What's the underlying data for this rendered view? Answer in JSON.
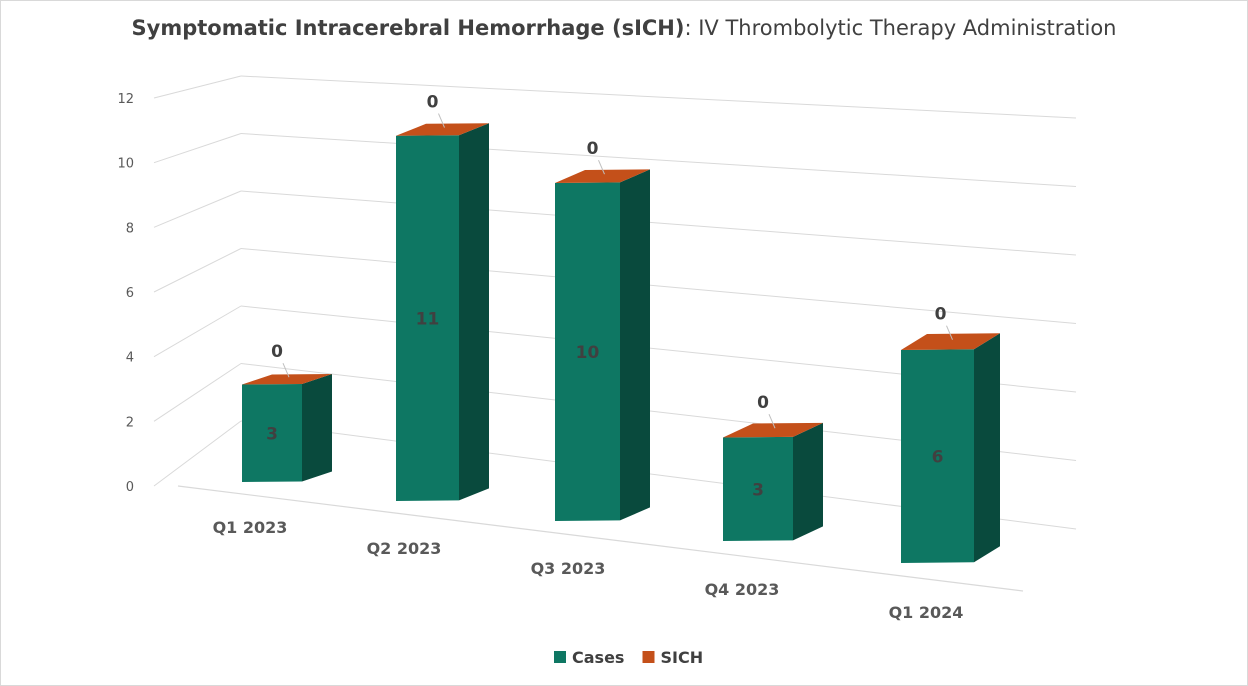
{
  "chart_data": {
    "type": "bar",
    "title": "Symptomatic Intracerebral Hemorrhage (sICH)",
    "subtitle": ": IV Thrombolytic Therapy Administration",
    "categories": [
      "Q1 2023",
      "Q2 2023",
      "Q3 2023",
      "Q4 2023",
      "Q1 2024"
    ],
    "series": [
      {
        "name": "Cases",
        "values": [
          3,
          11,
          10,
          3,
          6
        ],
        "color": "#0e7763"
      },
      {
        "name": "SICH",
        "values": [
          0,
          0,
          0,
          0,
          0
        ],
        "color": "#c4501a"
      }
    ],
    "y_ticks": [
      "0",
      "2",
      "4",
      "6",
      "8",
      "10",
      "12"
    ],
    "ylim": [
      0,
      12
    ],
    "grid": true,
    "legend": "bottom",
    "style": "3d-column"
  }
}
